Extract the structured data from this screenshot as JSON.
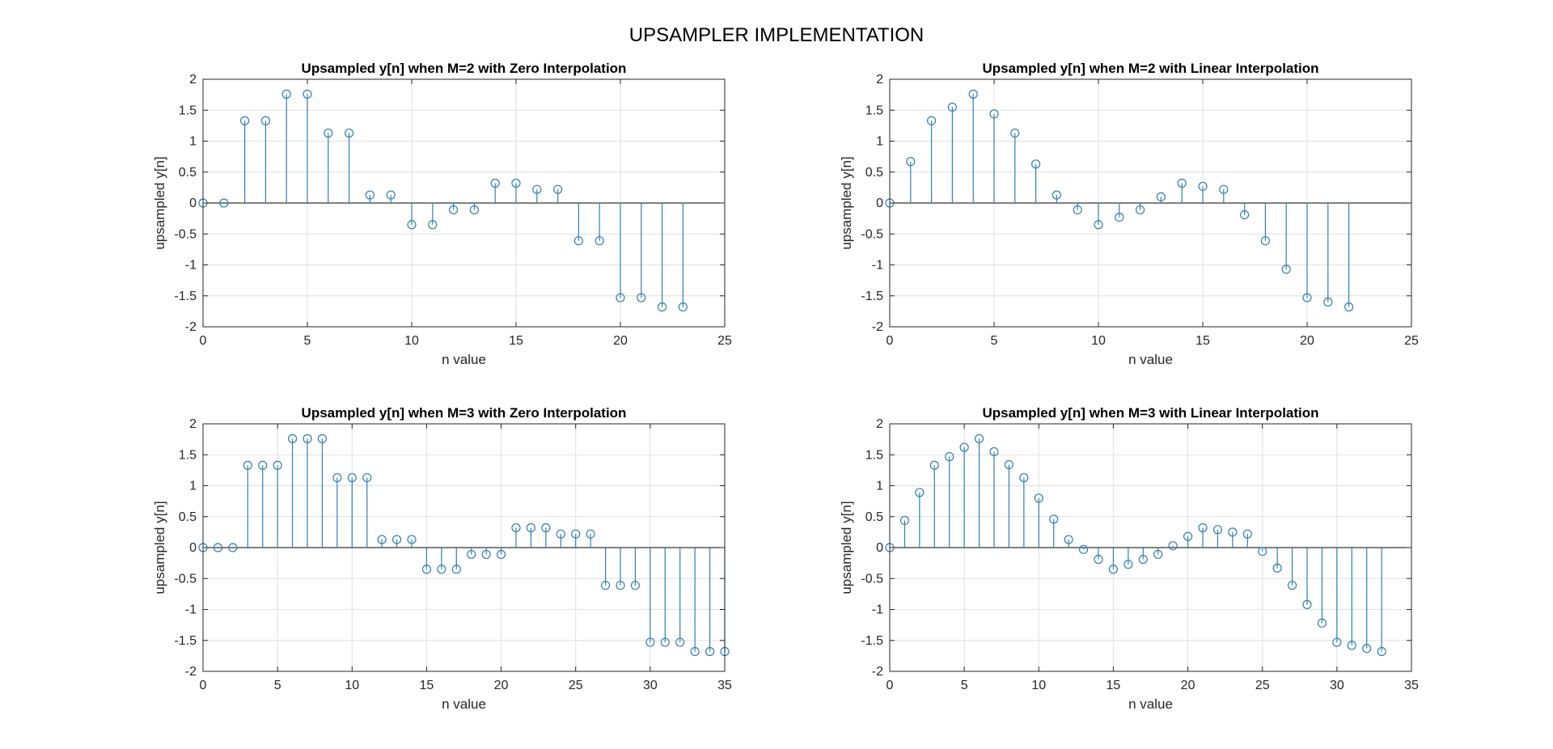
{
  "figure_title": "UPSAMPLER IMPLEMENTATION",
  "colors": {
    "stem": "#2f7fb5",
    "axis": "#262626",
    "grid": "#e0e0e0",
    "baseline": "#000000"
  },
  "chart_data": [
    {
      "type": "stem",
      "title": "Upsampled y[n] when M=2 with Zero Interpolation",
      "xlabel": "n value",
      "ylabel": "upsampled y[n]",
      "xlim": [
        0,
        25
      ],
      "ylim": [
        -2,
        2
      ],
      "xticks": [
        "0",
        "5",
        "10",
        "15",
        "20",
        "25"
      ],
      "yticks": [
        "2",
        "1.5",
        "1",
        "0.5",
        "0",
        "-0.5",
        "-1",
        "-1.5",
        "-2"
      ],
      "grid": true,
      "x": [
        0,
        1,
        2,
        3,
        4,
        5,
        6,
        7,
        8,
        9,
        10,
        11,
        12,
        13,
        14,
        15,
        16,
        17,
        18,
        19,
        20,
        21,
        22,
        23
      ],
      "values": [
        0,
        0,
        1.33,
        1.33,
        1.76,
        1.76,
        1.13,
        1.13,
        0.13,
        0.13,
        -0.35,
        -0.35,
        -0.11,
        -0.11,
        0.32,
        0.32,
        0.22,
        0.22,
        -0.61,
        -0.61,
        -1.53,
        -1.53,
        -1.68,
        -1.68
      ]
    },
    {
      "type": "stem",
      "title": "Upsampled y[n] when M=2 with Linear Interpolation",
      "xlabel": "n value",
      "ylabel": "upsampled y[n]",
      "xlim": [
        0,
        25
      ],
      "ylim": [
        -2,
        2
      ],
      "xticks": [
        "0",
        "5",
        "10",
        "15",
        "20",
        "25"
      ],
      "yticks": [
        "2",
        "1.5",
        "1",
        "0.5",
        "0",
        "-0.5",
        "-1",
        "-1.5",
        "-2"
      ],
      "grid": true,
      "x": [
        0,
        1,
        2,
        3,
        4,
        5,
        6,
        7,
        8,
        9,
        10,
        11,
        12,
        13,
        14,
        15,
        16,
        17,
        18,
        19,
        20,
        21,
        22
      ],
      "values": [
        0,
        0.67,
        1.33,
        1.55,
        1.76,
        1.44,
        1.13,
        0.63,
        0.13,
        -0.11,
        -0.35,
        -0.23,
        -0.11,
        0.1,
        0.32,
        0.27,
        0.22,
        -0.19,
        -0.61,
        -1.07,
        -1.53,
        -1.6,
        -1.68
      ]
    },
    {
      "type": "stem",
      "title": "Upsampled y[n] when M=3 with Zero Interpolation",
      "xlabel": "n value",
      "ylabel": "upsampled y[n]",
      "xlim": [
        0,
        35
      ],
      "ylim": [
        -2,
        2
      ],
      "xticks": [
        "0",
        "5",
        "10",
        "15",
        "20",
        "25",
        "30",
        "35"
      ],
      "yticks": [
        "2",
        "1.5",
        "1",
        "0.5",
        "0",
        "-0.5",
        "-1",
        "-1.5",
        "-2"
      ],
      "grid": true,
      "x": [
        0,
        1,
        2,
        3,
        4,
        5,
        6,
        7,
        8,
        9,
        10,
        11,
        12,
        13,
        14,
        15,
        16,
        17,
        18,
        19,
        20,
        21,
        22,
        23,
        24,
        25,
        26,
        27,
        28,
        29,
        30,
        31,
        32,
        33,
        34,
        35
      ],
      "values": [
        0,
        0,
        0,
        1.33,
        1.33,
        1.33,
        1.76,
        1.76,
        1.76,
        1.13,
        1.13,
        1.13,
        0.13,
        0.13,
        0.13,
        -0.35,
        -0.35,
        -0.35,
        -0.11,
        -0.11,
        -0.11,
        0.32,
        0.32,
        0.32,
        0.22,
        0.22,
        0.22,
        -0.61,
        -0.61,
        -0.61,
        -1.53,
        -1.53,
        -1.53,
        -1.68,
        -1.68,
        -1.68
      ]
    },
    {
      "type": "stem",
      "title": "Upsampled y[n] when M=3 with Linear Interpolation",
      "xlabel": "n value",
      "ylabel": "upsampled y[n]",
      "xlim": [
        0,
        35
      ],
      "ylim": [
        -2,
        2
      ],
      "xticks": [
        "0",
        "5",
        "10",
        "15",
        "20",
        "25",
        "30",
        "35"
      ],
      "yticks": [
        "2",
        "1.5",
        "1",
        "0.5",
        "0",
        "-0.5",
        "-1",
        "-1.5",
        "-2"
      ],
      "grid": true,
      "x": [
        0,
        1,
        2,
        3,
        4,
        5,
        6,
        7,
        8,
        9,
        10,
        11,
        12,
        13,
        14,
        15,
        16,
        17,
        18,
        19,
        20,
        21,
        22,
        23,
        24,
        25,
        26,
        27,
        28,
        29,
        30,
        31,
        32,
        33
      ],
      "values": [
        0,
        0.44,
        0.89,
        1.33,
        1.47,
        1.62,
        1.76,
        1.55,
        1.34,
        1.13,
        0.8,
        0.46,
        0.13,
        -0.03,
        -0.19,
        -0.35,
        -0.27,
        -0.19,
        -0.11,
        0.03,
        0.18,
        0.32,
        0.29,
        0.25,
        0.22,
        -0.06,
        -0.33,
        -0.61,
        -0.92,
        -1.22,
        -1.53,
        -1.58,
        -1.63,
        -1.68
      ]
    }
  ]
}
